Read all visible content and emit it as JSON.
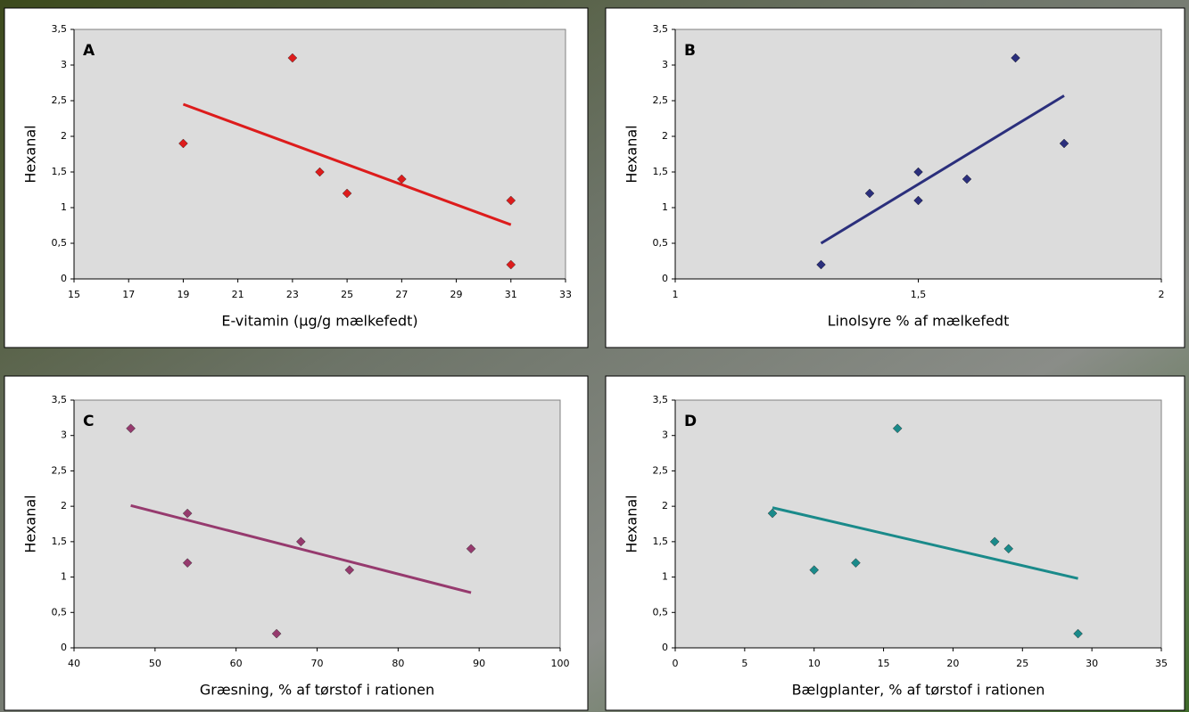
{
  "chart_data": [
    {
      "type": "scatter",
      "panel_label": "A",
      "xlabel": "E-vitamin (µg/g mælkefedt)",
      "ylabel": "Hexanal",
      "color": "#dd1c1c",
      "x": [
        19,
        23,
        24,
        25,
        27,
        31,
        31
      ],
      "values": [
        1.9,
        3.1,
        1.5,
        1.2,
        1.4,
        1.1,
        0.2
      ],
      "trendline": {
        "x": [
          19,
          31
        ],
        "y": [
          2.45,
          0.76
        ]
      },
      "xlim": [
        15,
        33
      ],
      "xticks": [
        15,
        17,
        19,
        21,
        23,
        25,
        27,
        29,
        31,
        33
      ],
      "ylim": [
        0,
        3.5
      ],
      "yticks": [
        0,
        {
          "value": 0.5,
          "label": "0,5"
        },
        1,
        {
          "value": 1.5,
          "label": "1,5"
        },
        2,
        {
          "value": 2.5,
          "label": "2,5"
        },
        3,
        {
          "value": 3.5,
          "label": "3,5"
        }
      ]
    },
    {
      "type": "scatter",
      "panel_label": "B",
      "xlabel": "Linolsyre % af mælkefedt",
      "ylabel": "Hexanal",
      "color": "#2b2f7c",
      "x": [
        1.3,
        1.4,
        1.5,
        1.5,
        1.6,
        1.7,
        1.8
      ],
      "values": [
        0.2,
        1.2,
        1.5,
        1.1,
        1.4,
        3.1,
        1.9
      ],
      "trendline": {
        "x": [
          1.3,
          1.8
        ],
        "y": [
          0.5,
          2.57
        ]
      },
      "xlim": [
        1,
        2
      ],
      "xticks": [
        1,
        {
          "value": 1.5,
          "label": "1,5"
        },
        2
      ],
      "ylim": [
        0,
        3.5
      ],
      "yticks": [
        0,
        {
          "value": 0.5,
          "label": "0,5"
        },
        1,
        {
          "value": 1.5,
          "label": "1,5"
        },
        2,
        {
          "value": 2.5,
          "label": "2,5"
        },
        3,
        {
          "value": 3.5,
          "label": "3,5"
        }
      ]
    },
    {
      "type": "scatter",
      "panel_label": "C",
      "xlabel": "Græsning, % af tørstof i rationen",
      "ylabel": "Hexanal",
      "color": "#963a6e",
      "x": [
        47,
        54,
        54,
        65,
        68,
        74,
        89
      ],
      "values": [
        3.1,
        1.9,
        1.2,
        0.2,
        1.5,
        1.1,
        1.4
      ],
      "trendline": {
        "x": [
          47,
          89
        ],
        "y": [
          2.01,
          0.78
        ]
      },
      "xlim": [
        40,
        100
      ],
      "xticks": [
        40,
        50,
        60,
        70,
        80,
        90,
        100
      ],
      "ylim": [
        0,
        3.5
      ],
      "yticks": [
        0,
        {
          "value": 0.5,
          "label": "0,5"
        },
        1,
        {
          "value": 1.5,
          "label": "1,5"
        },
        2,
        {
          "value": 2.5,
          "label": "2,5"
        },
        3,
        {
          "value": 3.5,
          "label": "3,5"
        }
      ]
    },
    {
      "type": "scatter",
      "panel_label": "D",
      "xlabel": "Bælgplanter, % af tørstof i rationen",
      "ylabel": "Hexanal",
      "color": "#1a8a8a",
      "x": [
        7,
        10,
        13,
        16,
        23,
        24,
        29
      ],
      "values": [
        1.9,
        1.1,
        1.2,
        3.1,
        1.5,
        1.4,
        0.2
      ],
      "trendline": {
        "x": [
          7,
          29
        ],
        "y": [
          1.98,
          0.98
        ]
      },
      "xlim": [
        0,
        35
      ],
      "xticks": [
        0,
        5,
        10,
        15,
        20,
        25,
        30,
        35
      ],
      "ylim": [
        0,
        3.5
      ],
      "yticks": [
        0,
        {
          "value": 0.5,
          "label": "0,5"
        },
        1,
        {
          "value": 1.5,
          "label": "1,5"
        },
        2,
        {
          "value": 2.5,
          "label": "2,5"
        },
        3,
        {
          "value": 3.5,
          "label": "3,5"
        }
      ]
    }
  ]
}
